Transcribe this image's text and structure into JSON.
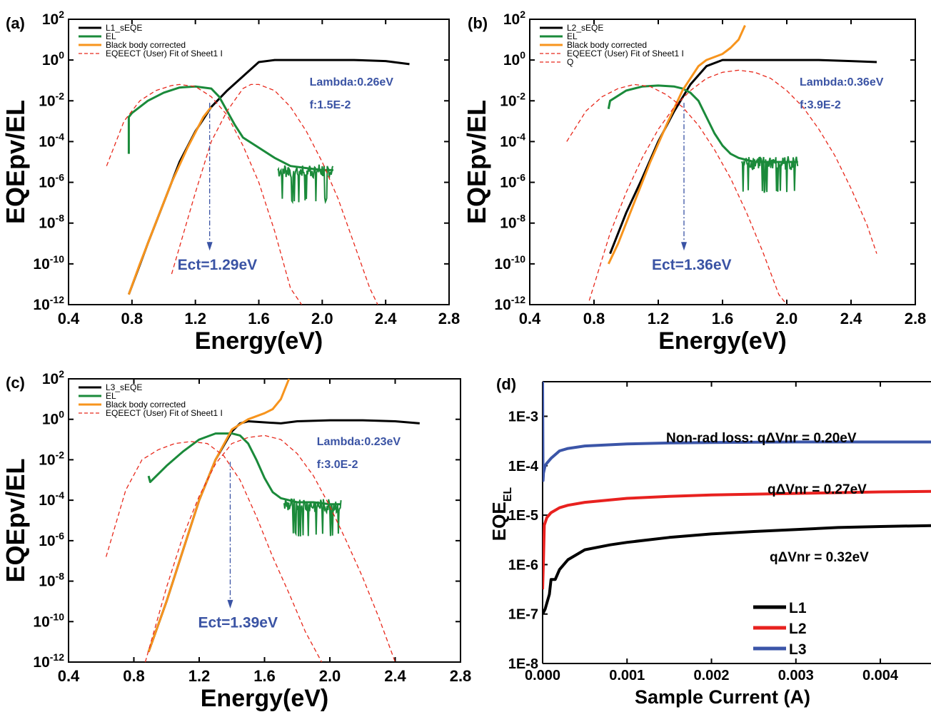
{
  "colors": {
    "sEQE": "#000000",
    "EL": "#1a8a3a",
    "blackbody": "#f7941d",
    "fit": "#e8291c",
    "annotation": "#3a53a4",
    "L1": "#000000",
    "L2": "#e8211f",
    "L3": "#3b55a8"
  },
  "chart_data": [
    {
      "panel": "(a)",
      "type": "line",
      "xlabel": "Energy(eV)",
      "ylabel": "EQEpv/EL",
      "xlim": [
        0.4,
        2.8
      ],
      "ylim_log10": [
        -12,
        2
      ],
      "y_scale": "log",
      "xticks": [
        "0.4",
        "0.8",
        "1.2",
        "1.6",
        "2.0",
        "2.4",
        "2.8"
      ],
      "yticks_exp": [
        "2",
        "0",
        "-2",
        "-4",
        "-6",
        "-8",
        "-10",
        "-12"
      ],
      "legend": [
        "L1_sEQE",
        "EL",
        "Black body corrected",
        "EQEECT (User) Fit of Sheet1 I"
      ],
      "legend_position": "top-left",
      "annotations": {
        "lambda": "Lambda:0.26eV",
        "f": "f:1.5E-2",
        "ect": "Ect=1.29eV"
      },
      "ect_value": 1.29,
      "series": [
        {
          "name": "L1_sEQE",
          "x": [
            0.78,
            0.9,
            1.0,
            1.1,
            1.2,
            1.3,
            1.4,
            1.5,
            1.6,
            1.7,
            1.8,
            2.0,
            2.2,
            2.4,
            2.55
          ],
          "log10_y": [
            -11.5,
            -9.0,
            -7.0,
            -5.0,
            -3.5,
            -2.3,
            -1.5,
            -0.8,
            -0.1,
            0.0,
            0.0,
            0.0,
            0.0,
            -0.05,
            -0.2
          ]
        },
        {
          "name": "EL",
          "x": [
            0.78,
            0.78,
            0.8,
            0.9,
            1.0,
            1.1,
            1.2,
            1.3,
            1.35,
            1.4,
            1.45,
            1.5,
            1.6,
            1.7,
            1.8,
            1.9,
            2.0,
            2.07
          ],
          "log10_y": [
            -4.6,
            -2.8,
            -2.6,
            -2.0,
            -1.6,
            -1.35,
            -1.3,
            -1.4,
            -1.8,
            -2.5,
            -3.2,
            -3.8,
            -4.3,
            -4.8,
            -5.2,
            -5.3,
            -5.4,
            -5.4
          ]
        },
        {
          "name": "Black body corrected",
          "x": [
            0.78,
            0.85,
            0.95,
            1.05,
            1.15,
            1.25,
            1.3
          ],
          "log10_y": [
            -11.5,
            -10.0,
            -8.0,
            -6.0,
            -4.3,
            -2.8,
            -2.3
          ]
        },
        {
          "name": "EQEECT (User) Fit of Sheet1 I",
          "x": [
            0.64,
            0.75,
            0.85,
            0.95,
            1.05,
            1.1,
            1.2,
            1.3,
            1.4,
            1.5,
            1.6,
            1.7,
            1.8,
            1.87
          ],
          "log10_y": [
            -5.2,
            -3.0,
            -2.0,
            -1.5,
            -1.25,
            -1.2,
            -1.3,
            -1.8,
            -2.7,
            -4.2,
            -6.0,
            -8.4,
            -11.2,
            -12.0
          ]
        },
        {
          "name": "EQEECT (User) Fit of Sheet1 I",
          "x": [
            1.05,
            1.2,
            1.3,
            1.4,
            1.5,
            1.55,
            1.6,
            1.7,
            1.8,
            1.9,
            2.0,
            2.1,
            2.2,
            2.3,
            2.35
          ],
          "log10_y": [
            -10.5,
            -6.5,
            -4.0,
            -2.5,
            -1.4,
            -1.2,
            -1.2,
            -1.5,
            -2.3,
            -3.5,
            -5.0,
            -6.8,
            -9.0,
            -11.2,
            -12.0
          ]
        }
      ]
    },
    {
      "panel": "(b)",
      "type": "line",
      "xlabel": "Energy(eV)",
      "ylabel": "EQEpv/EL",
      "xlim": [
        0.4,
        2.8
      ],
      "ylim_log10": [
        -12,
        2
      ],
      "y_scale": "log",
      "xticks": [
        "0.4",
        "0.8",
        "1.2",
        "1.6",
        "2.0",
        "2.4",
        "2.8"
      ],
      "yticks_exp": [
        "2",
        "0",
        "-2",
        "-4",
        "-6",
        "-8",
        "-10",
        "-12"
      ],
      "legend": [
        "L2_sEQE",
        "EL",
        "Black body corrected",
        "EQEECT (User) Fit of Sheet1 I",
        "Q"
      ],
      "legend_position": "top-left",
      "annotations": {
        "lambda": "Lambda:0.36eV",
        "f": "f:3.9E-2",
        "ect": "Ect=1.36eV"
      },
      "ect_value": 1.36,
      "series": [
        {
          "name": "L2_sEQE",
          "x": [
            0.9,
            1.0,
            1.1,
            1.2,
            1.3,
            1.4,
            1.5,
            1.6,
            1.8,
            2.0,
            2.2,
            2.4,
            2.56
          ],
          "log10_y": [
            -9.5,
            -7.5,
            -5.8,
            -4.0,
            -2.5,
            -1.2,
            -0.3,
            0.0,
            0.0,
            0.0,
            0.0,
            -0.05,
            -0.1
          ]
        },
        {
          "name": "EL",
          "x": [
            0.89,
            0.9,
            1.0,
            1.1,
            1.2,
            1.3,
            1.35,
            1.4,
            1.45,
            1.5,
            1.55,
            1.6,
            1.65,
            1.7,
            1.8,
            1.9,
            2.0,
            2.07
          ],
          "log10_y": [
            -2.4,
            -2.0,
            -1.5,
            -1.3,
            -1.25,
            -1.3,
            -1.4,
            -1.6,
            -2.0,
            -2.8,
            -3.6,
            -4.2,
            -4.6,
            -4.8,
            -5.0,
            -5.0,
            -5.0,
            -5.0
          ]
        },
        {
          "name": "Black body corrected",
          "x": [
            0.89,
            0.95,
            1.05,
            1.15,
            1.25,
            1.35,
            1.45,
            1.5,
            1.6,
            1.65,
            1.7,
            1.74
          ],
          "log10_y": [
            -10.0,
            -9.0,
            -7.0,
            -5.0,
            -3.2,
            -1.5,
            -0.3,
            0.0,
            0.3,
            0.6,
            1.0,
            1.7
          ]
        },
        {
          "name": "EQEECT (User) Fit of Sheet1 I",
          "x": [
            0.63,
            0.75,
            0.85,
            0.95,
            1.05,
            1.15,
            1.25,
            1.35,
            1.45,
            1.55,
            1.65,
            1.75,
            1.85,
            1.95,
            2.0
          ],
          "log10_y": [
            -4.0,
            -2.5,
            -1.8,
            -1.4,
            -1.2,
            -1.3,
            -1.7,
            -2.3,
            -3.2,
            -4.4,
            -5.8,
            -7.5,
            -9.4,
            -11.5,
            -12.0
          ]
        },
        {
          "name": "Q",
          "x": [
            0.77,
            0.9,
            1.0,
            1.1,
            1.2,
            1.3,
            1.4,
            1.5,
            1.6,
            1.7,
            1.8,
            1.9,
            2.0,
            2.1,
            2.2,
            2.3,
            2.4,
            2.5,
            2.56
          ],
          "log10_y": [
            -11.8,
            -8.5,
            -6.5,
            -4.8,
            -3.4,
            -2.3,
            -1.5,
            -0.9,
            -0.6,
            -0.5,
            -0.6,
            -0.9,
            -1.5,
            -2.3,
            -3.4,
            -4.7,
            -6.3,
            -8.1,
            -9.5
          ]
        }
      ]
    },
    {
      "panel": "(c)",
      "type": "line",
      "xlabel": "Energy(eV)",
      "ylabel": "EQEpv/EL",
      "xlim": [
        0.4,
        2.8
      ],
      "ylim_log10": [
        -12,
        2
      ],
      "y_scale": "log",
      "xticks": [
        "0.4",
        "0.8",
        "1.2",
        "1.6",
        "2.0",
        "2.4",
        "2.8"
      ],
      "yticks_exp": [
        "2",
        "0",
        "-2",
        "-4",
        "-6",
        "-8",
        "-10",
        "-12"
      ],
      "legend": [
        "L3_sEQE",
        "EL",
        "Black body corrected",
        "EQEECT (User) Fit of Sheet1 I"
      ],
      "legend_position": "top-left",
      "annotations": {
        "lambda": "Lambda:0.23eV",
        "f": "f:3.0E-2",
        "ect": "Ect=1.39eV"
      },
      "ect_value": 1.39,
      "series": [
        {
          "name": "L3_sEQE",
          "x": [
            0.89,
            1.0,
            1.1,
            1.2,
            1.3,
            1.4,
            1.45,
            1.5,
            1.6,
            1.7,
            1.8,
            2.0,
            2.2,
            2.4,
            2.55
          ],
          "log10_y": [
            -11.5,
            -9.0,
            -6.5,
            -4.0,
            -2.0,
            -0.6,
            -0.2,
            -0.1,
            -0.15,
            -0.2,
            -0.1,
            -0.05,
            -0.05,
            -0.1,
            -0.2
          ]
        },
        {
          "name": "EL",
          "x": [
            0.89,
            0.9,
            1.0,
            1.1,
            1.2,
            1.3,
            1.4,
            1.45,
            1.5,
            1.55,
            1.6,
            1.65,
            1.7,
            1.8,
            1.9,
            2.0,
            2.07
          ],
          "log10_y": [
            -2.8,
            -3.1,
            -2.3,
            -1.6,
            -1.0,
            -0.7,
            -0.7,
            -0.8,
            -1.2,
            -2.0,
            -2.9,
            -3.6,
            -3.9,
            -4.1,
            -4.1,
            -4.2,
            -4.2
          ]
        },
        {
          "name": "Black body corrected",
          "x": [
            0.89,
            1.0,
            1.1,
            1.2,
            1.3,
            1.4,
            1.5,
            1.6,
            1.65,
            1.7,
            1.75
          ],
          "log10_y": [
            -11.5,
            -9.0,
            -6.5,
            -4.0,
            -2.0,
            -0.5,
            0.0,
            0.3,
            0.5,
            1.0,
            2.0
          ]
        },
        {
          "name": "EQEECT (User) Fit of Sheet1 I",
          "x": [
            0.63,
            0.75,
            0.85,
            0.95,
            1.05,
            1.15,
            1.25,
            1.35,
            1.45,
            1.55,
            1.65,
            1.75,
            1.85,
            1.95
          ],
          "log10_y": [
            -6.8,
            -3.5,
            -2.0,
            -1.5,
            -1.2,
            -1.1,
            -1.2,
            -1.8,
            -3.0,
            -4.8,
            -6.8,
            -8.6,
            -10.5,
            -12.0
          ]
        },
        {
          "name": "EQEECT (User) Fit of Sheet1 I",
          "x": [
            0.87,
            1.0,
            1.1,
            1.2,
            1.3,
            1.4,
            1.5,
            1.6,
            1.7,
            1.8,
            1.9,
            2.0,
            2.1,
            2.2,
            2.3,
            2.4
          ],
          "log10_y": [
            -12.0,
            -8.3,
            -5.8,
            -3.8,
            -2.2,
            -1.2,
            -0.9,
            -0.8,
            -1.0,
            -1.7,
            -2.8,
            -4.3,
            -6.0,
            -7.8,
            -9.8,
            -12.0
          ]
        }
      ]
    },
    {
      "panel": "(d)",
      "type": "line",
      "xlabel": "Sample Current (A)",
      "ylabel_main": "EQE",
      "ylabel_sub": "EL",
      "xlim": [
        0,
        0.0046
      ],
      "ylim_log10": [
        -8,
        -2.3
      ],
      "y_scale": "log",
      "xticks": [
        "0.000",
        "0.001",
        "0.002",
        "0.003",
        "0.004"
      ],
      "yticks": [
        "1E-8",
        "1E-7",
        "1E-6",
        "1E-5",
        "1E-4",
        "1E-3"
      ],
      "legend": [
        "L1",
        "L2",
        "L3"
      ],
      "legend_position": "bottom-right",
      "annotations": [
        "Non-rad loss: qΔVnr = 0.20eV",
        "qΔVnr = 0.27eV",
        "qΔVnr = 0.32eV"
      ],
      "series": [
        {
          "name": "L1",
          "x": [
            0.0,
            3e-05,
            8e-05,
            0.0001,
            0.00015,
            0.0002,
            0.0003,
            0.0005,
            0.0008,
            0.001,
            0.0015,
            0.002,
            0.0025,
            0.003,
            0.0035,
            0.004,
            0.0046
          ],
          "log10_y": [
            -7.0,
            -6.9,
            -6.6,
            -6.3,
            -6.3,
            -6.1,
            -5.9,
            -5.7,
            -5.6,
            -5.55,
            -5.45,
            -5.38,
            -5.33,
            -5.29,
            -5.25,
            -5.23,
            -5.21
          ]
        },
        {
          "name": "L2",
          "x": [
            0.0,
            1e-05,
            2e-05,
            5e-05,
            0.0001,
            0.0002,
            0.0003,
            0.0005,
            0.001,
            0.0015,
            0.002,
            0.003,
            0.004,
            0.0046
          ],
          "log10_y": [
            -6.5,
            -5.9,
            -5.2,
            -5.05,
            -4.95,
            -4.85,
            -4.8,
            -4.74,
            -4.66,
            -4.62,
            -4.59,
            -4.56,
            -4.53,
            -4.52
          ]
        },
        {
          "name": "L3",
          "x": [
            0.0,
            5e-06,
            1e-05,
            3e-05,
            5e-05,
            0.0001,
            0.0002,
            0.0003,
            0.0005,
            0.001,
            0.0015,
            0.002,
            0.003,
            0.004,
            0.0046
          ],
          "log10_y": [
            -2.3,
            -4.3,
            -4.15,
            -4.0,
            -3.95,
            -3.85,
            -3.7,
            -3.65,
            -3.6,
            -3.56,
            -3.54,
            -3.53,
            -3.52,
            -3.52,
            -3.52
          ]
        }
      ]
    }
  ]
}
